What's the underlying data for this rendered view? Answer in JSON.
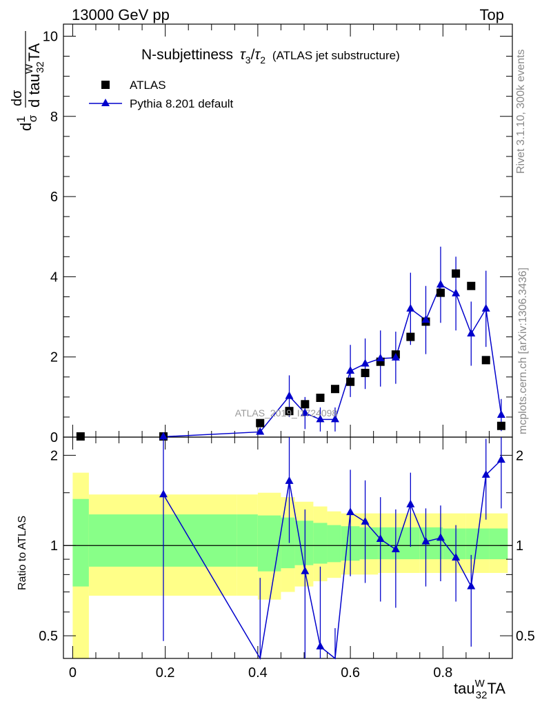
{
  "header": {
    "left": "13000 GeV pp",
    "right": "Top"
  },
  "side_labels": {
    "rivet": "Rivet 3.1.10,  300k events",
    "mcplots": "mcplots.cern.ch [arXiv:1306.3436]"
  },
  "watermark": "ATLAS_2019_I1724098",
  "title": {
    "main": "N-subjettiness",
    "tau3": "τ",
    "sub3": "3",
    "slash": "/",
    "tau2": "τ",
    "sub2": "2",
    "extra": "(ATLAS jet substructure)"
  },
  "axes": {
    "ylabel_top": {
      "d": "d",
      "one": "1",
      "sigma": "σ",
      "dsigma": "dσ",
      "dtau": "d tau",
      "sup": "W",
      "sub": "32",
      "ta": "TA"
    },
    "ylabel_ratio": "Ratio to ATLAS",
    "xlabel": {
      "tau": "tau",
      "sup": "W",
      "sub": "32",
      "ta": "TA"
    }
  },
  "legend": [
    {
      "label": "ATLAS",
      "marker": "square",
      "color": "#000000"
    },
    {
      "label": "Pythia 8.201 default",
      "marker": "triangle",
      "color": "#0000cc"
    }
  ],
  "colors": {
    "mc": "#0000cc",
    "data": "#000000",
    "band_outer": "#ffff88",
    "band_inner": "#88ff88"
  },
  "chart_data": {
    "type": "scatter",
    "x": [
      0.017,
      0.196,
      0.405,
      0.468,
      0.502,
      0.535,
      0.567,
      0.6,
      0.632,
      0.665,
      0.698,
      0.73,
      0.763,
      0.795,
      0.828,
      0.861,
      0.893,
      0.926
    ],
    "series": [
      {
        "name": "ATLAS",
        "values": [
          0.0,
          0.01,
          0.35,
          0.65,
          0.82,
          0.98,
          1.2,
          1.38,
          1.6,
          1.88,
          2.06,
          2.5,
          2.88,
          3.6,
          4.08,
          3.77,
          1.92,
          0.28
        ]
      },
      {
        "name": "Pythia 8.201 default",
        "values": [
          null,
          0.01,
          0.13,
          1.02,
          0.6,
          0.44,
          0.44,
          1.65,
          1.83,
          1.96,
          1.98,
          3.2,
          2.92,
          3.8,
          3.58,
          2.58,
          3.2,
          0.55
        ],
        "yerr": [
          null,
          0,
          0.05,
          0.52,
          0.4,
          0.3,
          0.3,
          0.65,
          0.63,
          0.7,
          0.65,
          0.9,
          0.85,
          0.95,
          0.92,
          0.8,
          0.95,
          0.4
        ]
      }
    ],
    "ratio": {
      "x": [
        0.196,
        0.405,
        0.468,
        0.502,
        0.535,
        0.567,
        0.6,
        0.632,
        0.665,
        0.698,
        0.73,
        0.763,
        0.795,
        0.828,
        0.861,
        0.893,
        0.926
      ],
      "values": [
        1.48,
        0.38,
        1.64,
        0.82,
        0.46,
        0.33,
        1.29,
        1.2,
        1.05,
        0.97,
        1.37,
        1.03,
        1.06,
        0.91,
        0.73,
        1.72,
        1.93
      ],
      "err_low": [
        1.0,
        0.38,
        0.62,
        0.5,
        0.22,
        0.2,
        0.5,
        0.45,
        0.4,
        0.35,
        0.38,
        0.3,
        0.3,
        0.26,
        0.27,
        0.5,
        0.6
      ],
      "err_high": [
        1.0,
        0.4,
        0.72,
        0.5,
        0.39,
        0.2,
        0.5,
        0.45,
        0.4,
        0.35,
        0.38,
        0.3,
        0.3,
        0.26,
        0.2,
        0.55,
        0.6
      ],
      "band_edges": [
        0.0,
        0.035,
        0.355,
        0.4,
        0.45,
        0.48,
        0.52,
        0.55,
        0.58,
        0.62,
        0.66,
        0.7,
        0.75,
        0.8,
        0.85,
        0.9,
        0.94
      ],
      "outer_lo": [
        0.3,
        0.68,
        0.68,
        0.66,
        0.7,
        0.73,
        0.76,
        0.78,
        0.8,
        0.8,
        0.81,
        0.81,
        0.81,
        0.81,
        0.81,
        0.81
      ],
      "outer_hi": [
        1.75,
        1.48,
        1.48,
        1.5,
        1.45,
        1.4,
        1.35,
        1.3,
        1.28,
        1.28,
        1.28,
        1.28,
        1.28,
        1.28,
        1.28,
        1.28
      ],
      "inner_lo": [
        0.73,
        0.85,
        0.85,
        0.82,
        0.84,
        0.86,
        0.87,
        0.88,
        0.89,
        0.9,
        0.9,
        0.9,
        0.9,
        0.9,
        0.9,
        0.9
      ],
      "inner_hi": [
        1.43,
        1.27,
        1.27,
        1.26,
        1.24,
        1.21,
        1.19,
        1.17,
        1.16,
        1.15,
        1.15,
        1.15,
        1.15,
        1.14,
        1.14,
        1.14
      ]
    },
    "xlim": [
      -0.02,
      0.95
    ],
    "ylim": [
      0,
      10.3
    ],
    "ratio_ylim": [
      0.42,
      2.3
    ],
    "ratio_yscale": "log",
    "xticks": [
      "0",
      "0.2",
      "0.4",
      "0.6",
      "0.8"
    ],
    "yticks": [
      "0",
      "2",
      "4",
      "6",
      "8",
      "10"
    ],
    "ratio_yticks": [
      "0.5",
      "1",
      "2"
    ],
    "legend_position": "top-left"
  }
}
